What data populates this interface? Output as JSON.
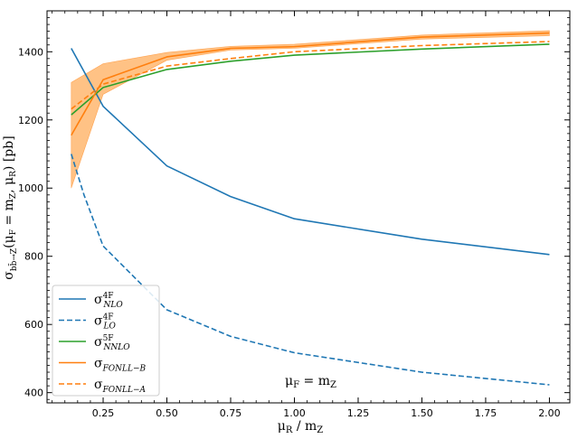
{
  "chart_data": {
    "type": "line",
    "xlabel": "μR / mZ",
    "ylabel": "σbb̄→Z(μF = mZ, μR) [pb]",
    "annotation": "μF = mZ",
    "xlim": [
      0.03,
      2.08
    ],
    "ylim": [
      370,
      1520
    ],
    "x_ticks": [
      0.25,
      0.5,
      0.75,
      1.0,
      1.25,
      1.5,
      1.75,
      2.0
    ],
    "x_tick_labels": [
      "0.25",
      "0.50",
      "0.75",
      "1.00",
      "1.25",
      "1.50",
      "1.75",
      "2.00"
    ],
    "y_ticks": [
      400,
      600,
      800,
      1000,
      1200,
      1400
    ],
    "y_tick_labels": [
      "400",
      "600",
      "800",
      "1000",
      "1200",
      "1400"
    ],
    "grid": false,
    "legend_position": "bottom-left",
    "colors": {
      "blue": "#1f77b4",
      "orange": "#ff7f0e",
      "green": "#2ca02c",
      "band": "#ffbb78"
    },
    "series": [
      {
        "name": "σ_NLO^4F",
        "legend_base": "σ",
        "legend_sub": "NLO",
        "legend_sup": "4F",
        "color": "#1f77b4",
        "dash": "solid",
        "x": [
          0.125,
          0.25,
          0.5,
          0.75,
          1.0,
          1.5,
          2.0
        ],
        "y": [
          1410,
          1240,
          1065,
          975,
          910,
          850,
          805
        ]
      },
      {
        "name": "σ_LO^4F",
        "legend_base": "σ",
        "legend_sub": "LO",
        "legend_sup": "4F",
        "color": "#1f77b4",
        "dash": "dashed",
        "x": [
          0.125,
          0.175,
          0.25,
          0.5,
          0.75,
          1.0,
          1.5,
          2.0
        ],
        "y": [
          1100,
          980,
          830,
          643,
          565,
          517,
          460,
          423
        ]
      },
      {
        "name": "σ_NNLO^5F",
        "legend_base": "σ",
        "legend_sub": "NNLO",
        "legend_sup": "5F",
        "color": "#2ca02c",
        "dash": "solid",
        "x": [
          0.125,
          0.25,
          0.5,
          0.75,
          1.0,
          1.5,
          2.0
        ],
        "y": [
          1215,
          1295,
          1348,
          1372,
          1390,
          1408,
          1422
        ]
      },
      {
        "name": "σ_FONLL−B",
        "legend_base": "σ",
        "legend_sub": "FONLL−B",
        "legend_sup": "",
        "color": "#ff7f0e",
        "dash": "solid",
        "x": [
          0.125,
          0.25,
          0.5,
          0.75,
          1.0,
          1.5,
          2.0
        ],
        "y": [
          1155,
          1318,
          1385,
          1410,
          1415,
          1443,
          1455
        ],
        "band_low": [
          1000,
          1275,
          1375,
          1405,
          1410,
          1437,
          1447
        ],
        "band_high": [
          1310,
          1365,
          1398,
          1416,
          1422,
          1449,
          1462
        ]
      },
      {
        "name": "σ_FONLL−A",
        "legend_base": "σ",
        "legend_sub": "FONLL−A",
        "legend_sup": "",
        "color": "#ff7f0e",
        "dash": "dashed",
        "x": [
          0.125,
          0.25,
          0.5,
          0.75,
          1.0,
          1.5,
          2.0
        ],
        "y": [
          1232,
          1305,
          1358,
          1380,
          1400,
          1418,
          1430
        ]
      }
    ]
  }
}
